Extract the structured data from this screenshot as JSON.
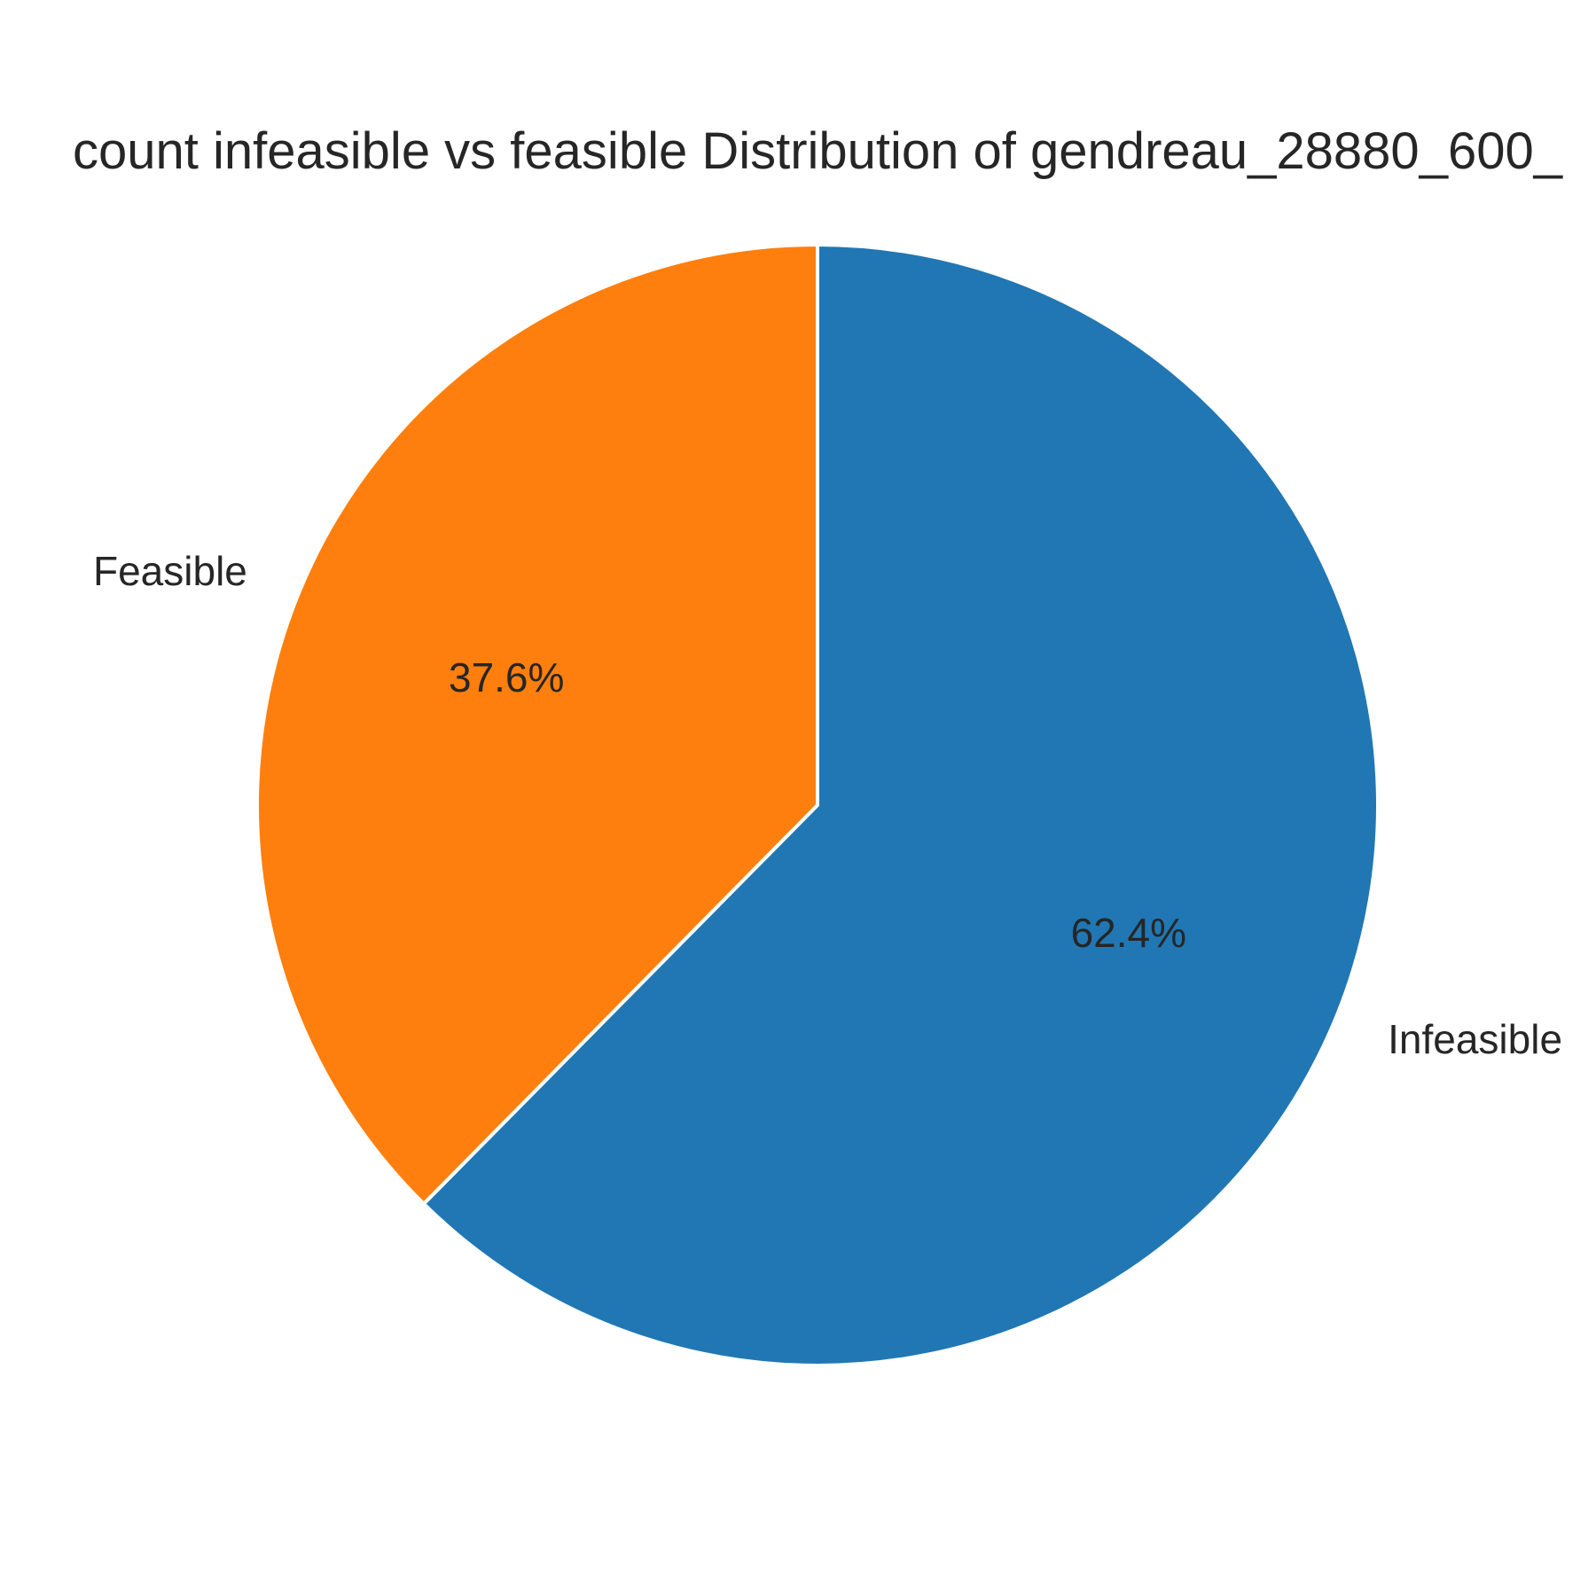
{
  "chart_data": {
    "type": "pie",
    "title": "count infeasible vs feasible Distribution of gendreau_28880_600_",
    "slices": [
      {
        "label": "Infeasible",
        "value": 62.4,
        "pct_label": "62.4%",
        "color": "#2077b4"
      },
      {
        "label": "Feasible",
        "value": 37.6,
        "pct_label": "37.6%",
        "color": "#fe7f0e"
      }
    ],
    "start_angle_deg": 90,
    "direction": "clockwise",
    "edge_color": "#ffffff"
  }
}
